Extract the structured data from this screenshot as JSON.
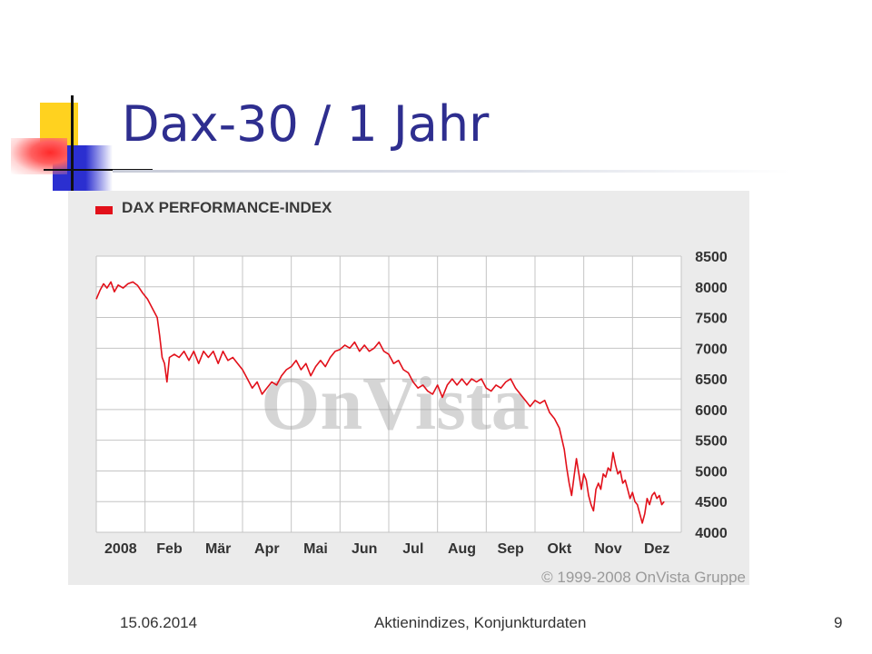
{
  "slide": {
    "title": "Dax-30 / 1 Jahr"
  },
  "footer": {
    "date": "15.06.2014",
    "center_text": "Aktienindizes, Konjunkturdaten",
    "page_number": "9"
  },
  "colors": {
    "title": "#2e2e8f",
    "series": "#e2101a",
    "panel": "#ebebeb",
    "grid": "#c4c4c4"
  },
  "chart_data": {
    "type": "line",
    "title": "DAX PERFORMANCE-INDEX",
    "watermark": "OnVista",
    "copyright": "© 1999-2008 OnVista Gruppe",
    "y_axis_position": "right",
    "ylim": [
      4000,
      8500
    ],
    "yticks": [
      "8500",
      "8000",
      "7500",
      "7000",
      "6500",
      "6000",
      "5500",
      "5000",
      "4500",
      "4000"
    ],
    "xlim": [
      0,
      12
    ],
    "xticks": [
      {
        "label": "2008",
        "x": 0.5
      },
      {
        "label": "Feb",
        "x": 1.5
      },
      {
        "label": "Mär",
        "x": 2.5
      },
      {
        "label": "Apr",
        "x": 3.5
      },
      {
        "label": "Mai",
        "x": 4.5
      },
      {
        "label": "Jun",
        "x": 5.5
      },
      {
        "label": "Jul",
        "x": 6.5
      },
      {
        "label": "Aug",
        "x": 7.5
      },
      {
        "label": "Sep",
        "x": 8.5
      },
      {
        "label": "Okt",
        "x": 9.5
      },
      {
        "label": "Nov",
        "x": 10.5
      },
      {
        "label": "Dez",
        "x": 11.5
      }
    ],
    "grid": true,
    "legend": "top-left",
    "series": [
      {
        "name": "DAX PERFORMANCE-INDEX",
        "color": "#e2101a",
        "points": [
          [
            0.0,
            7800
          ],
          [
            0.08,
            7950
          ],
          [
            0.15,
            8050
          ],
          [
            0.22,
            7980
          ],
          [
            0.3,
            8080
          ],
          [
            0.37,
            7920
          ],
          [
            0.45,
            8030
          ],
          [
            0.55,
            7980
          ],
          [
            0.65,
            8050
          ],
          [
            0.75,
            8080
          ],
          [
            0.85,
            8020
          ],
          [
            0.95,
            7900
          ],
          [
            1.05,
            7800
          ],
          [
            1.15,
            7650
          ],
          [
            1.25,
            7500
          ],
          [
            1.3,
            7200
          ],
          [
            1.35,
            6850
          ],
          [
            1.4,
            6750
          ],
          [
            1.45,
            6450
          ],
          [
            1.5,
            6850
          ],
          [
            1.6,
            6900
          ],
          [
            1.7,
            6850
          ],
          [
            1.8,
            6950
          ],
          [
            1.9,
            6800
          ],
          [
            2.0,
            6950
          ],
          [
            2.1,
            6750
          ],
          [
            2.2,
            6950
          ],
          [
            2.3,
            6850
          ],
          [
            2.4,
            6950
          ],
          [
            2.5,
            6750
          ],
          [
            2.6,
            6950
          ],
          [
            2.7,
            6800
          ],
          [
            2.8,
            6850
          ],
          [
            2.9,
            6750
          ],
          [
            3.0,
            6650
          ],
          [
            3.1,
            6500
          ],
          [
            3.2,
            6350
          ],
          [
            3.3,
            6450
          ],
          [
            3.4,
            6250
          ],
          [
            3.5,
            6350
          ],
          [
            3.6,
            6450
          ],
          [
            3.7,
            6400
          ],
          [
            3.8,
            6550
          ],
          [
            3.9,
            6650
          ],
          [
            4.0,
            6700
          ],
          [
            4.1,
            6800
          ],
          [
            4.2,
            6650
          ],
          [
            4.3,
            6750
          ],
          [
            4.4,
            6550
          ],
          [
            4.5,
            6700
          ],
          [
            4.6,
            6800
          ],
          [
            4.7,
            6700
          ],
          [
            4.8,
            6850
          ],
          [
            4.9,
            6950
          ],
          [
            5.0,
            6980
          ],
          [
            5.1,
            7050
          ],
          [
            5.2,
            7000
          ],
          [
            5.3,
            7100
          ],
          [
            5.4,
            6950
          ],
          [
            5.5,
            7050
          ],
          [
            5.6,
            6950
          ],
          [
            5.7,
            7000
          ],
          [
            5.8,
            7100
          ],
          [
            5.9,
            6950
          ],
          [
            6.0,
            6900
          ],
          [
            6.1,
            6750
          ],
          [
            6.2,
            6800
          ],
          [
            6.3,
            6650
          ],
          [
            6.4,
            6600
          ],
          [
            6.5,
            6450
          ],
          [
            6.6,
            6350
          ],
          [
            6.7,
            6400
          ],
          [
            6.8,
            6300
          ],
          [
            6.9,
            6250
          ],
          [
            7.0,
            6400
          ],
          [
            7.1,
            6200
          ],
          [
            7.2,
            6400
          ],
          [
            7.3,
            6500
          ],
          [
            7.4,
            6400
          ],
          [
            7.5,
            6500
          ],
          [
            7.6,
            6400
          ],
          [
            7.7,
            6500
          ],
          [
            7.8,
            6450
          ],
          [
            7.9,
            6500
          ],
          [
            8.0,
            6350
          ],
          [
            8.1,
            6300
          ],
          [
            8.2,
            6400
          ],
          [
            8.3,
            6350
          ],
          [
            8.4,
            6450
          ],
          [
            8.5,
            6500
          ],
          [
            8.6,
            6350
          ],
          [
            8.7,
            6250
          ],
          [
            8.8,
            6150
          ],
          [
            8.9,
            6050
          ],
          [
            9.0,
            6150
          ],
          [
            9.1,
            6100
          ],
          [
            9.2,
            6150
          ],
          [
            9.3,
            5950
          ],
          [
            9.4,
            5850
          ],
          [
            9.5,
            5700
          ],
          [
            9.6,
            5350
          ],
          [
            9.65,
            5050
          ],
          [
            9.7,
            4800
          ],
          [
            9.75,
            4600
          ],
          [
            9.8,
            4900
          ],
          [
            9.85,
            5200
          ],
          [
            9.9,
            4950
          ],
          [
            9.95,
            4700
          ],
          [
            10.0,
            4950
          ],
          [
            10.05,
            4850
          ],
          [
            10.1,
            4600
          ],
          [
            10.15,
            4450
          ],
          [
            10.2,
            4350
          ],
          [
            10.25,
            4700
          ],
          [
            10.3,
            4800
          ],
          [
            10.35,
            4700
          ],
          [
            10.4,
            4950
          ],
          [
            10.45,
            4900
          ],
          [
            10.5,
            5050
          ],
          [
            10.55,
            5000
          ],
          [
            10.6,
            5300
          ],
          [
            10.65,
            5100
          ],
          [
            10.7,
            4950
          ],
          [
            10.75,
            5000
          ],
          [
            10.8,
            4800
          ],
          [
            10.85,
            4850
          ],
          [
            10.9,
            4700
          ],
          [
            10.95,
            4550
          ],
          [
            11.0,
            4650
          ],
          [
            11.05,
            4500
          ],
          [
            11.1,
            4450
          ],
          [
            11.15,
            4300
          ],
          [
            11.2,
            4150
          ],
          [
            11.25,
            4300
          ],
          [
            11.3,
            4550
          ],
          [
            11.35,
            4450
          ],
          [
            11.4,
            4600
          ],
          [
            11.45,
            4650
          ],
          [
            11.5,
            4550
          ],
          [
            11.55,
            4600
          ],
          [
            11.6,
            4450
          ],
          [
            11.65,
            4500
          ]
        ]
      }
    ]
  }
}
